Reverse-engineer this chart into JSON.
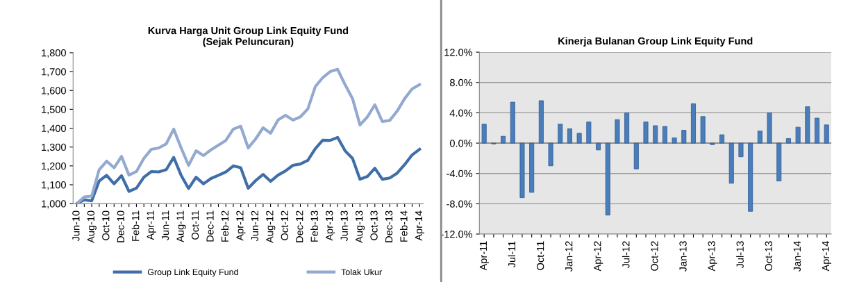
{
  "chart_data": [
    {
      "type": "line",
      "title": "Kurva Harga Unit Group Link Equity Fund\n(Sejak Peluncuran)",
      "categories": [
        "Jun-10",
        null,
        "Aug-10",
        null,
        "Oct-10",
        null,
        "Dec-10",
        null,
        "Feb-11",
        null,
        "Apr-11",
        null,
        "Jun-11",
        null,
        "Aug-11",
        null,
        "Oct-11",
        null,
        "Dec-11",
        null,
        "Feb-12",
        null,
        "Apr-12",
        null,
        "Jun-12",
        null,
        "Aug-12",
        null,
        "Oct-12",
        null,
        "Dec-12",
        null,
        "Feb-13",
        null,
        "Apr-13",
        null,
        "Jun-13",
        null,
        "Aug-13",
        null,
        "Oct-13",
        null,
        "Dec-13",
        null,
        "Feb-14",
        null,
        "Apr-14"
      ],
      "series": [
        {
          "name": "Group Link Equity Fund",
          "color": "#3f6ea8",
          "values": [
            1000,
            1020,
            1015,
            1120,
            1150,
            1105,
            1148,
            1065,
            1082,
            1140,
            1170,
            1168,
            1180,
            1245,
            1150,
            1080,
            1140,
            1105,
            1133,
            1150,
            1168,
            1200,
            1190,
            1081,
            1122,
            1155,
            1118,
            1151,
            1173,
            1203,
            1210,
            1229,
            1291,
            1336,
            1335,
            1351,
            1280,
            1240,
            1129,
            1144,
            1188,
            1129,
            1136,
            1162,
            1207,
            1258,
            1288
          ]
        },
        {
          "name": "Tolak Ukur",
          "color": "#93a9d0",
          "values": [
            1000,
            1035,
            1040,
            1180,
            1225,
            1190,
            1250,
            1151,
            1170,
            1240,
            1288,
            1295,
            1317,
            1395,
            1295,
            1203,
            1280,
            1255,
            1285,
            1310,
            1335,
            1395,
            1410,
            1295,
            1343,
            1402,
            1373,
            1443,
            1468,
            1443,
            1460,
            1502,
            1620,
            1668,
            1700,
            1712,
            1631,
            1557,
            1417,
            1460,
            1524,
            1435,
            1441,
            1491,
            1557,
            1608,
            1631
          ]
        }
      ],
      "ylim": [
        1000,
        1800
      ],
      "yticks": [
        {
          "value": 1000,
          "label": "1,000"
        },
        {
          "value": 1100,
          "label": "1,100"
        },
        {
          "value": 1200,
          "label": "1,200"
        },
        {
          "value": 1300,
          "label": "1,300"
        },
        {
          "value": 1400,
          "label": "1,400"
        },
        {
          "value": 1500,
          "label": "1,500"
        },
        {
          "value": 1600,
          "label": "1,600"
        },
        {
          "value": 1700,
          "label": "1,700"
        },
        {
          "value": 1800,
          "label": "1,800"
        }
      ],
      "grid": false,
      "legend": "bottom",
      "marker": "none",
      "line_style": "solid"
    },
    {
      "type": "bar",
      "title": "Kinerja Bulanan Group Link Equity Fund",
      "categories": [
        "Apr-11",
        null,
        null,
        "Jul-11",
        null,
        null,
        "Oct-11",
        null,
        null,
        "Jan-12",
        null,
        null,
        "Apr-12",
        null,
        null,
        "Jul-12",
        null,
        null,
        "Oct-12",
        null,
        null,
        "Jan-13",
        null,
        null,
        "Apr-13",
        null,
        null,
        "Jul-13",
        null,
        null,
        "Oct-13",
        null,
        null,
        "Jan-14",
        null,
        null,
        "Apr-14"
      ],
      "series": [
        {
          "color": "#4a7ebb",
          "values": [
            2.5,
            -0.1,
            0.9,
            5.4,
            -7.2,
            -6.5,
            5.6,
            -3.0,
            2.5,
            1.9,
            1.3,
            2.8,
            -0.9,
            -9.5,
            3.1,
            4.0,
            -3.4,
            2.8,
            2.3,
            2.2,
            0.7,
            1.7,
            5.2,
            3.5,
            -0.2,
            1.1,
            -5.3,
            -1.8,
            -9.0,
            1.6,
            4.0,
            -5.0,
            0.6,
            2.1,
            4.8,
            3.3,
            2.4
          ]
        }
      ],
      "ylim": [
        -12,
        12
      ],
      "yticks": [
        {
          "value": -12,
          "label": "-12.0%"
        },
        {
          "value": -8,
          "label": "-8.0%"
        },
        {
          "value": -4,
          "label": "-4.0%"
        },
        {
          "value": 0,
          "label": "0.0%"
        },
        {
          "value": 4,
          "label": "4.0%"
        },
        {
          "value": 8,
          "label": "8.0%"
        },
        {
          "value": 12,
          "label": "12.0%"
        }
      ],
      "grid": "y",
      "legend": false
    }
  ]
}
